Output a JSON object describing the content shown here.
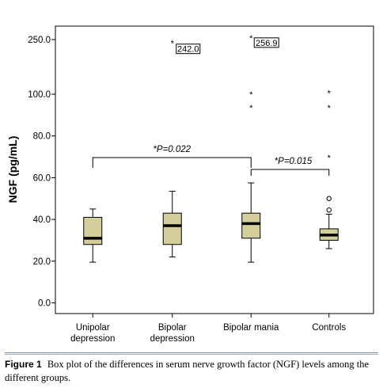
{
  "chart_data": {
    "type": "box",
    "ylabel": "NGF (pg/mL)",
    "y_ticks": [
      "0.0",
      "20.0",
      "40.0",
      "60.0",
      "80.0",
      "100.0",
      "250.0"
    ],
    "categories": [
      "Unipolar depression",
      "Bipolar depression",
      "Bipolar mania",
      "Controls"
    ],
    "category_lines": [
      [
        "Unipolar",
        "depression"
      ],
      [
        "Bipolar",
        "depression"
      ],
      [
        "Bipolar mania"
      ],
      [
        "Controls"
      ]
    ],
    "box_color": "#d4cf9a",
    "boxes": [
      {
        "whisker_low": 19.5,
        "q1": 28,
        "median": 31,
        "q3": 41,
        "whisker_high": 45,
        "outliers": [],
        "extremes": []
      },
      {
        "whisker_low": 22,
        "q1": 28,
        "median": 37,
        "q3": 43,
        "whisker_high": 53.5,
        "outliers": [],
        "extremes": [
          242.0
        ]
      },
      {
        "whisker_low": 19.5,
        "q1": 31,
        "median": 38,
        "q3": 43,
        "whisker_high": 57.5,
        "outliers": [],
        "extremes": [
          94,
          102,
          256.9
        ]
      },
      {
        "whisker_low": 26,
        "q1": 30,
        "median": 32.5,
        "q3": 35.5,
        "whisker_high": 42.5,
        "outliers": [
          44.5,
          50
        ],
        "extremes": [
          70,
          94,
          105
        ]
      }
    ],
    "value_labels": [
      "242.0",
      "256.9"
    ],
    "comparisons": [
      {
        "from": "Unipolar depression",
        "to": "Bipolar mania",
        "label": "*P=0.022"
      },
      {
        "from": "Bipolar mania",
        "to": "Controls",
        "label": "*P=0.015"
      }
    ]
  },
  "caption": {
    "label": "Figure 1",
    "text": "Box plot of the differences in serum nerve growth factor (NGF) levels among the different groups."
  }
}
